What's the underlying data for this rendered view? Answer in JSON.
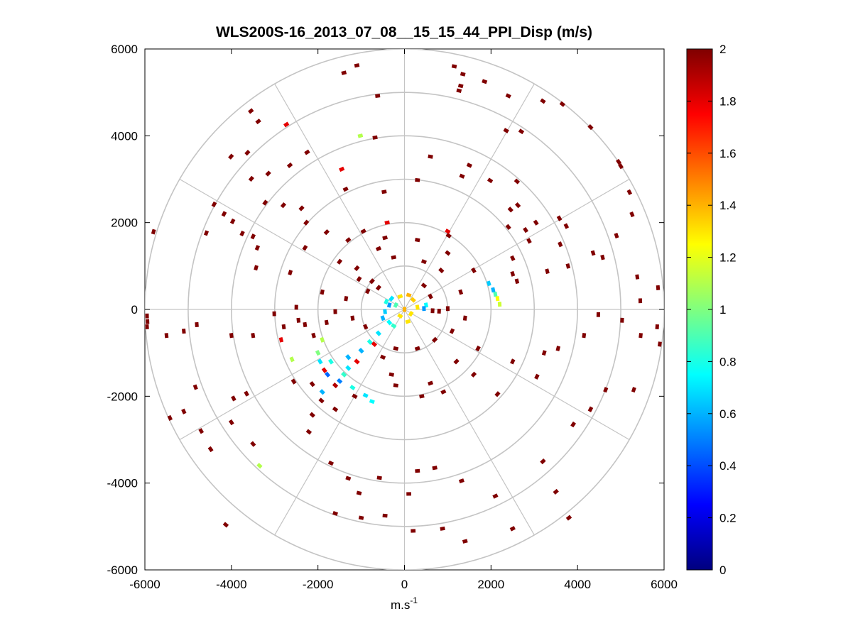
{
  "chart_data": {
    "type": "polar-ppi-scatter",
    "title": "WLS200S-16_2013_07_08__15_15_44_PPI_Disp (m/s)",
    "xlabel_base": "m.s",
    "xlabel_sup": "-1",
    "ylabel": "",
    "xlim": [
      -6000,
      6000
    ],
    "ylim": [
      -6000,
      6000
    ],
    "x_ticks": [
      -6000,
      -4000,
      -2000,
      0,
      2000,
      4000,
      6000
    ],
    "y_ticks": [
      -6000,
      -4000,
      -2000,
      0,
      2000,
      4000,
      6000
    ],
    "x_tick_labels": [
      "-6000",
      "-4000",
      "-2000",
      "0",
      "2000",
      "4000",
      "6000"
    ],
    "y_tick_labels": [
      "-6000",
      "-4000",
      "-2000",
      "0",
      "2000",
      "4000",
      "6000"
    ],
    "range_rings_m": [
      1000,
      2000,
      3000,
      4000,
      5000,
      6000
    ],
    "spoke_angles_deg": [
      0,
      30,
      60,
      90,
      120,
      150,
      180,
      210,
      240,
      270,
      300,
      330
    ],
    "colorbar": {
      "min": 0,
      "max": 2,
      "ticks": [
        0,
        0.2,
        0.4,
        0.6,
        0.8,
        1,
        1.2,
        1.4,
        1.6,
        1.8,
        2
      ],
      "tick_labels": [
        "0",
        "0.2",
        "0.4",
        "0.6",
        "0.8",
        "1",
        "1.2",
        "1.4",
        "1.6",
        "1.8",
        "2"
      ],
      "colormap": "jet"
    },
    "grid": true,
    "points_columns": [
      "x_m",
      "y_m",
      "value_m_s"
    ],
    "points": [
      [
        -1400,
        5450,
        2
      ],
      [
        -1100,
        5620,
        2
      ],
      [
        -620,
        4920,
        2
      ],
      [
        1150,
        5600,
        2
      ],
      [
        1350,
        5420,
        2
      ],
      [
        1850,
        5250,
        2
      ],
      [
        2400,
        4920,
        2
      ],
      [
        1300,
        5150,
        2
      ],
      [
        1260,
        5040,
        2
      ],
      [
        3200,
        4800,
        2
      ],
      [
        3650,
        4730,
        2
      ],
      [
        4300,
        4200,
        2
      ],
      [
        4950,
        3400,
        2
      ],
      [
        5000,
        3300,
        2
      ],
      [
        5200,
        2700,
        2
      ],
      [
        -3550,
        4570,
        2
      ],
      [
        -3380,
        4330,
        2
      ],
      [
        -3630,
        3610,
        2
      ],
      [
        -4010,
        3520,
        2
      ],
      [
        -3150,
        3130,
        2
      ],
      [
        -3540,
        3010,
        2
      ],
      [
        -3220,
        2460,
        2
      ],
      [
        -2650,
        3320,
        2
      ],
      [
        -2730,
        4260,
        1.8
      ],
      [
        -2250,
        3620,
        2
      ],
      [
        -1450,
        3230,
        1.8
      ],
      [
        -1360,
        2770,
        2
      ],
      [
        -1020,
        4000,
        1.1
      ],
      [
        -680,
        3960,
        2
      ],
      [
        -470,
        2710,
        2
      ],
      [
        -4580,
        1760,
        2
      ],
      [
        -4170,
        2200,
        2
      ],
      [
        -4400,
        2420,
        2
      ],
      [
        -3970,
        2030,
        2
      ],
      [
        -3750,
        1750,
        2
      ],
      [
        -3500,
        1680,
        2
      ],
      [
        -3400,
        1420,
        2
      ],
      [
        -3430,
        960,
        2
      ],
      [
        -2800,
        2400,
        2
      ],
      [
        -2380,
        2330,
        2
      ],
      [
        -2270,
        2000,
        2
      ],
      [
        -2300,
        1420,
        2
      ],
      [
        -1800,
        1780,
        2
      ],
      [
        -1500,
        1100,
        2
      ],
      [
        -5800,
        1790,
        2
      ],
      [
        -5950,
        -150,
        2
      ],
      [
        -5940,
        -280,
        2
      ],
      [
        -5950,
        -400,
        2
      ],
      [
        -5500,
        -600,
        2
      ],
      [
        -5100,
        -500,
        2
      ],
      [
        -4800,
        -350,
        2
      ],
      [
        -4000,
        -600,
        2
      ],
      [
        -3500,
        -600,
        2
      ],
      [
        -3010,
        -100,
        2
      ],
      [
        -2640,
        850,
        2
      ],
      [
        -2500,
        50,
        2
      ],
      [
        -2450,
        -250,
        2
      ],
      [
        -2790,
        -400,
        2
      ],
      [
        -2850,
        -700,
        1.8
      ],
      [
        -2600,
        -1150,
        1.1
      ],
      [
        -4830,
        -1790,
        2
      ],
      [
        -5100,
        -2350,
        2
      ],
      [
        -5420,
        -2500,
        2
      ],
      [
        -4700,
        -2800,
        2
      ],
      [
        -4000,
        -2600,
        2
      ],
      [
        -3950,
        -2050,
        2
      ],
      [
        -3650,
        -1940,
        2
      ],
      [
        -3350,
        -3600,
        1.1
      ],
      [
        -3500,
        -3100,
        2
      ],
      [
        -4480,
        -3220,
        2
      ],
      [
        -2560,
        -1660,
        2
      ],
      [
        -2130,
        -1720,
        2
      ],
      [
        -2130,
        -2430,
        2
      ],
      [
        -2210,
        -2820,
        2
      ],
      [
        -1920,
        -2100,
        2
      ],
      [
        -1150,
        -2000,
        2
      ],
      [
        -1700,
        -3540,
        2
      ],
      [
        -1300,
        -3890,
        2
      ],
      [
        -580,
        -3880,
        2
      ],
      [
        -1050,
        -4230,
        2
      ],
      [
        -4130,
        -4960,
        2
      ],
      [
        -1600,
        -4700,
        2
      ],
      [
        -1000,
        -4800,
        2
      ],
      [
        -450,
        -4750,
        2
      ],
      [
        200,
        -5100,
        2
      ],
      [
        100,
        -4250,
        2
      ],
      [
        300,
        -3720,
        2
      ],
      [
        700,
        -3650,
        2
      ],
      [
        1320,
        -3950,
        2
      ],
      [
        2100,
        -4300,
        2
      ],
      [
        880,
        -5050,
        2
      ],
      [
        1400,
        -5340,
        2
      ],
      [
        2500,
        -5050,
        2
      ],
      [
        3800,
        -4800,
        2
      ],
      [
        3500,
        -4200,
        2
      ],
      [
        3200,
        -3500,
        2
      ],
      [
        3900,
        -2650,
        2
      ],
      [
        4300,
        -2300,
        2
      ],
      [
        4650,
        -1850,
        2
      ],
      [
        5300,
        -1850,
        2
      ],
      [
        3060,
        -1550,
        2
      ],
      [
        2150,
        -1950,
        2
      ],
      [
        2500,
        -1200,
        2
      ],
      [
        3230,
        -1000,
        2
      ],
      [
        3550,
        -900,
        2
      ],
      [
        4150,
        -600,
        2
      ],
      [
        4480,
        -120,
        2
      ],
      [
        5030,
        -250,
        2
      ],
      [
        5460,
        -600,
        2
      ],
      [
        5900,
        -800,
        2
      ],
      [
        5840,
        -400,
        2
      ],
      [
        5860,
        500,
        2
      ],
      [
        5380,
        750,
        2
      ],
      [
        5450,
        200,
        2
      ],
      [
        4580,
        1200,
        2
      ],
      [
        3780,
        1000,
        2
      ],
      [
        4360,
        1300,
        2
      ],
      [
        3600,
        1500,
        2
      ],
      [
        3300,
        880,
        2
      ],
      [
        2500,
        1180,
        2
      ],
      [
        2500,
        820,
        2
      ],
      [
        2600,
        650,
        2
      ],
      [
        3740,
        1920,
        2
      ],
      [
        3040,
        2000,
        2
      ],
      [
        2880,
        1580,
        2
      ],
      [
        2800,
        1830,
        2
      ],
      [
        2620,
        2400,
        2
      ],
      [
        3580,
        2100,
        2
      ],
      [
        5260,
        2190,
        2
      ],
      [
        4900,
        1700,
        2
      ],
      [
        1500,
        3320,
        2
      ],
      [
        1330,
        3070,
        2
      ],
      [
        600,
        3520,
        2
      ],
      [
        300,
        2980,
        2
      ],
      [
        1980,
        2970,
        2
      ],
      [
        2600,
        2950,
        2
      ],
      [
        2400,
        1900,
        2
      ],
      [
        2450,
        2300,
        2
      ],
      [
        2700,
        4100,
        2
      ],
      [
        2350,
        4120,
        2
      ],
      [
        -420,
        180,
        0.8
      ],
      [
        -300,
        250,
        0.7
      ],
      [
        -200,
        100,
        0.9
      ],
      [
        -100,
        -150,
        1.3
      ],
      [
        80,
        -280,
        1.3
      ],
      [
        200,
        220,
        1.35
      ],
      [
        300,
        50,
        1.3
      ],
      [
        -350,
        -300,
        0.75
      ],
      [
        -250,
        -380,
        0.85
      ],
      [
        100,
        330,
        1.4
      ],
      [
        -500,
        -200,
        0.6
      ],
      [
        -600,
        -550,
        0.7
      ],
      [
        -800,
        -750,
        0.8
      ],
      [
        -1000,
        -950,
        0.6
      ],
      [
        -1100,
        -1200,
        1.8
      ],
      [
        -1300,
        -1350,
        0.7
      ],
      [
        -1400,
        -1500,
        0.85
      ],
      [
        -1500,
        -1650,
        0.5
      ],
      [
        -1600,
        -1750,
        1.9
      ],
      [
        -1200,
        -1800,
        0.8
      ],
      [
        -900,
        -1980,
        0.7
      ],
      [
        -750,
        -2120,
        0.75
      ],
      [
        -1780,
        -1500,
        0.45
      ],
      [
        -1900,
        -1900,
        0.6
      ],
      [
        -1850,
        -1400,
        1.8
      ],
      [
        -1950,
        -1200,
        0.7
      ],
      [
        -1700,
        -1200,
        0.8
      ],
      [
        -1900,
        -700,
        1.1
      ],
      [
        -2000,
        -1000,
        1.0
      ],
      [
        -1300,
        -1100,
        0.6
      ],
      [
        1950,
        600,
        0.65
      ],
      [
        2050,
        450,
        0.6
      ],
      [
        2100,
        350,
        0.9
      ],
      [
        2150,
        250,
        1.25
      ],
      [
        2200,
        120,
        1.15
      ],
      [
        500,
        100,
        0.75
      ],
      [
        450,
        20,
        0.55
      ],
      [
        650,
        -30,
        2
      ],
      [
        800,
        -40,
        2
      ],
      [
        1000,
        20,
        2
      ],
      [
        -350,
        100,
        0.55
      ],
      [
        -450,
        -50,
        0.65
      ],
      [
        0,
        0,
        1.4
      ],
      [
        150,
        -100,
        1.3
      ],
      [
        -100,
        300,
        1.3
      ],
      [
        -750,
        650,
        2
      ],
      [
        -1100,
        950,
        2
      ],
      [
        -600,
        1400,
        2
      ],
      [
        -250,
        1200,
        2
      ],
      [
        450,
        1100,
        2
      ],
      [
        850,
        900,
        2
      ],
      [
        1000,
        1300,
        2
      ],
      [
        -1350,
        250,
        2
      ],
      [
        -1600,
        -50,
        2
      ],
      [
        -1200,
        -200,
        2
      ],
      [
        -900,
        -400,
        2
      ],
      [
        -700,
        -800,
        1.8
      ],
      [
        -500,
        -1100,
        2
      ],
      [
        -300,
        -1500,
        2
      ],
      [
        -200,
        -900,
        2
      ],
      [
        300,
        -900,
        2
      ],
      [
        700,
        -700,
        2
      ],
      [
        1100,
        -500,
        2
      ],
      [
        1400,
        -200,
        2
      ],
      [
        1300,
        400,
        2
      ],
      [
        -1300,
        1600,
        2
      ],
      [
        -950,
        1800,
        2
      ],
      [
        -450,
        1650,
        2
      ],
      [
        300,
        1600,
        2
      ],
      [
        1020,
        1700,
        2
      ],
      [
        1600,
        900,
        2
      ],
      [
        1700,
        -900,
        2
      ],
      [
        1200,
        -1200,
        2
      ],
      [
        600,
        -1700,
        2
      ],
      [
        -200,
        -1750,
        2
      ],
      [
        -1050,
        700,
        2
      ],
      [
        -850,
        420,
        2
      ],
      [
        -600,
        500,
        2
      ],
      [
        450,
        550,
        2
      ],
      [
        600,
        300,
        2
      ],
      [
        -1900,
        400,
        2
      ],
      [
        -1800,
        -300,
        2
      ],
      [
        -2100,
        -600,
        2
      ],
      [
        1600,
        -1500,
        2
      ],
      [
        900,
        -1900,
        2
      ],
      [
        -400,
        2000,
        1.8
      ],
      [
        1000,
        1800,
        1.8
      ],
      [
        400,
        -2000,
        2
      ],
      [
        -1600,
        -2300,
        2
      ],
      [
        -2300,
        -350,
        2
      ]
    ]
  }
}
